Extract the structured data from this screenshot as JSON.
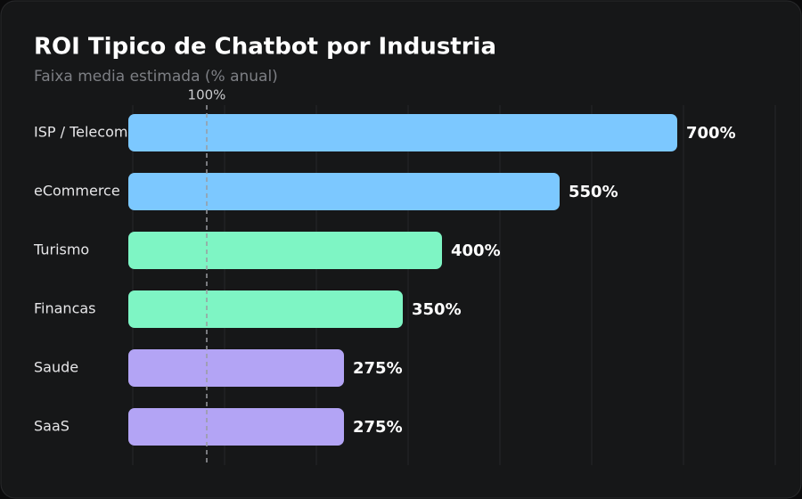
{
  "chart_data": {
    "type": "bar",
    "orientation": "horizontal",
    "title": "ROI Tipico de Chatbot por Industria",
    "subtitle": "Faixa media estimada (% anual)",
    "categories": [
      "ISP / Telecom",
      "eCommerce",
      "Turismo",
      "Financas",
      "Saude",
      "SaaS"
    ],
    "values": [
      700,
      550,
      400,
      350,
      275,
      275
    ],
    "value_labels": [
      "700%",
      "550%",
      "400%",
      "350%",
      "275%",
      "275%"
    ],
    "colors": [
      "#7cc8ff",
      "#7cc8ff",
      "#7ef5c4",
      "#7ef5c4",
      "#b3a4f5",
      "#b3a4f5"
    ],
    "xlim": [
      0,
      800
    ],
    "reference_line": {
      "value": 100,
      "label": "100%"
    }
  }
}
